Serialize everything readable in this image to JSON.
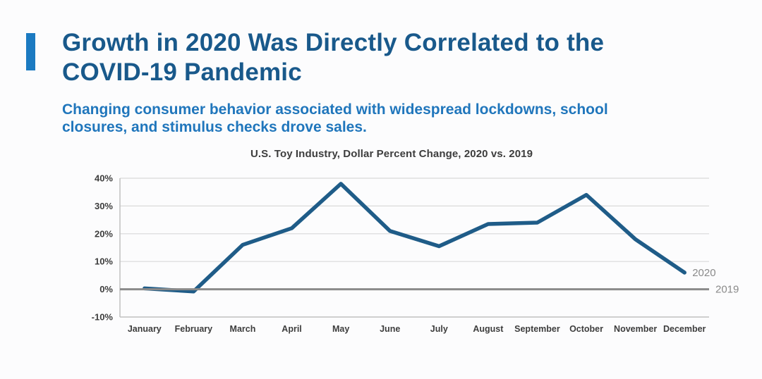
{
  "page": {
    "background": "#fcfcfd"
  },
  "header": {
    "accent_color": "#1b7ac1",
    "title_lines": [
      "Growth in 2020 Was Directly Correlated to the",
      "COVID-19 Pandemic"
    ],
    "title_color": "#19598b",
    "subtitle_lines": [
      "Changing consumer behavior associated with widespread lockdowns, school",
      "closures, and stimulus checks drove sales."
    ],
    "subtitle_color": "#2076bc"
  },
  "chart_data": {
    "type": "line",
    "title": "U.S. Toy Industry, Dollar Percent Change, 2020 vs. 2019",
    "categories": [
      "January",
      "February",
      "March",
      "April",
      "May",
      "June",
      "July",
      "August",
      "September",
      "October",
      "November",
      "December"
    ],
    "series": [
      {
        "name": "2020",
        "values": [
          0.3,
          -0.8,
          16,
          22,
          38,
          21,
          15.5,
          23.5,
          24,
          34,
          18,
          6
        ],
        "color": "#1f5c88",
        "stroke_width": 5.5
      },
      {
        "name": "2019",
        "values": [
          0,
          0,
          0,
          0,
          0,
          0,
          0,
          0,
          0,
          0,
          0,
          0
        ],
        "color": "#8a8a8a",
        "stroke_width": 3,
        "baseline": true
      }
    ],
    "xlabel": "",
    "ylabel": "",
    "ylim": [
      -10,
      40
    ],
    "yticks": [
      40,
      30,
      20,
      10,
      0,
      -10
    ],
    "ytick_labels": [
      "40%",
      "30%",
      "20%",
      "10%",
      "0%",
      "-10%"
    ],
    "grid": true,
    "legend_position": "line-end-labels",
    "end_labels": [
      "2020",
      "2019"
    ],
    "colors": {
      "gridline": "#d9d9d9",
      "axis_line": "#c0c0c0",
      "tick_label": "#3d3d3d",
      "end_label": "#8a8a8a"
    }
  }
}
